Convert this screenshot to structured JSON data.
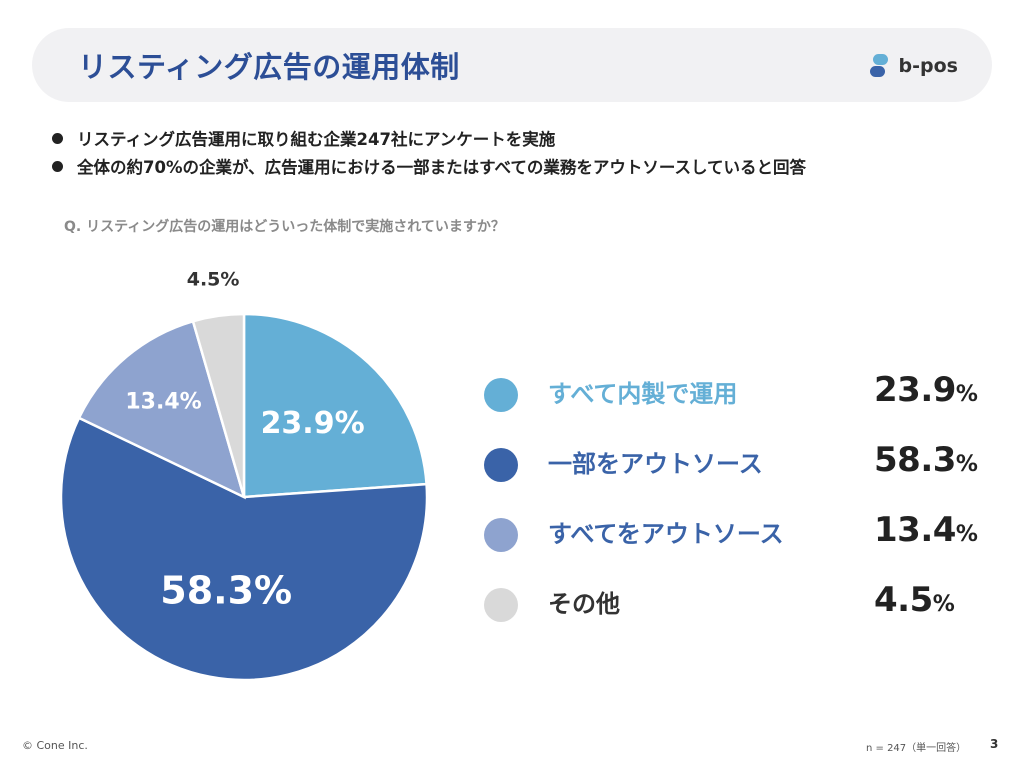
{
  "header": {
    "title": "リスティング広告の運用体制",
    "logo_text": "b-pos"
  },
  "bullets": [
    "リスティング広告運用に取り組む企業247社にアンケートを実施",
    "全体の約70%の企業が、広告運用における一部またはすべての業務をアウトソースしていると回答"
  ],
  "question": "Q. リスティング広告の運用はどういった体制で実施されていますか？",
  "chart_data": {
    "type": "pie",
    "title": "",
    "slices": [
      {
        "label": "すべて内製で運用",
        "value": 23.9,
        "display": "23.9%",
        "legend_num": "23.9",
        "color": "#64afd6",
        "label_color": "#64afd6"
      },
      {
        "label": "一部をアウトソース",
        "value": 58.3,
        "display": "58.3%",
        "legend_num": "58.3",
        "color": "#3a63a8",
        "label_color": "#3a63a8"
      },
      {
        "label": "すべてをアウトソース",
        "value": 13.4,
        "display": "13.4%",
        "legend_num": "13.4",
        "color": "#8ea3cf",
        "label_color": "#3a63a8"
      },
      {
        "label": "その他",
        "value": 4.5,
        "display": "4.5%",
        "legend_num": "4.5",
        "color": "#d9d9d9",
        "label_color": "#333333"
      }
    ],
    "legend_placement": "right"
  },
  "footer": {
    "copyright": "© Cone Inc.",
    "note": "n = 247（単一回答）",
    "page": "3"
  }
}
